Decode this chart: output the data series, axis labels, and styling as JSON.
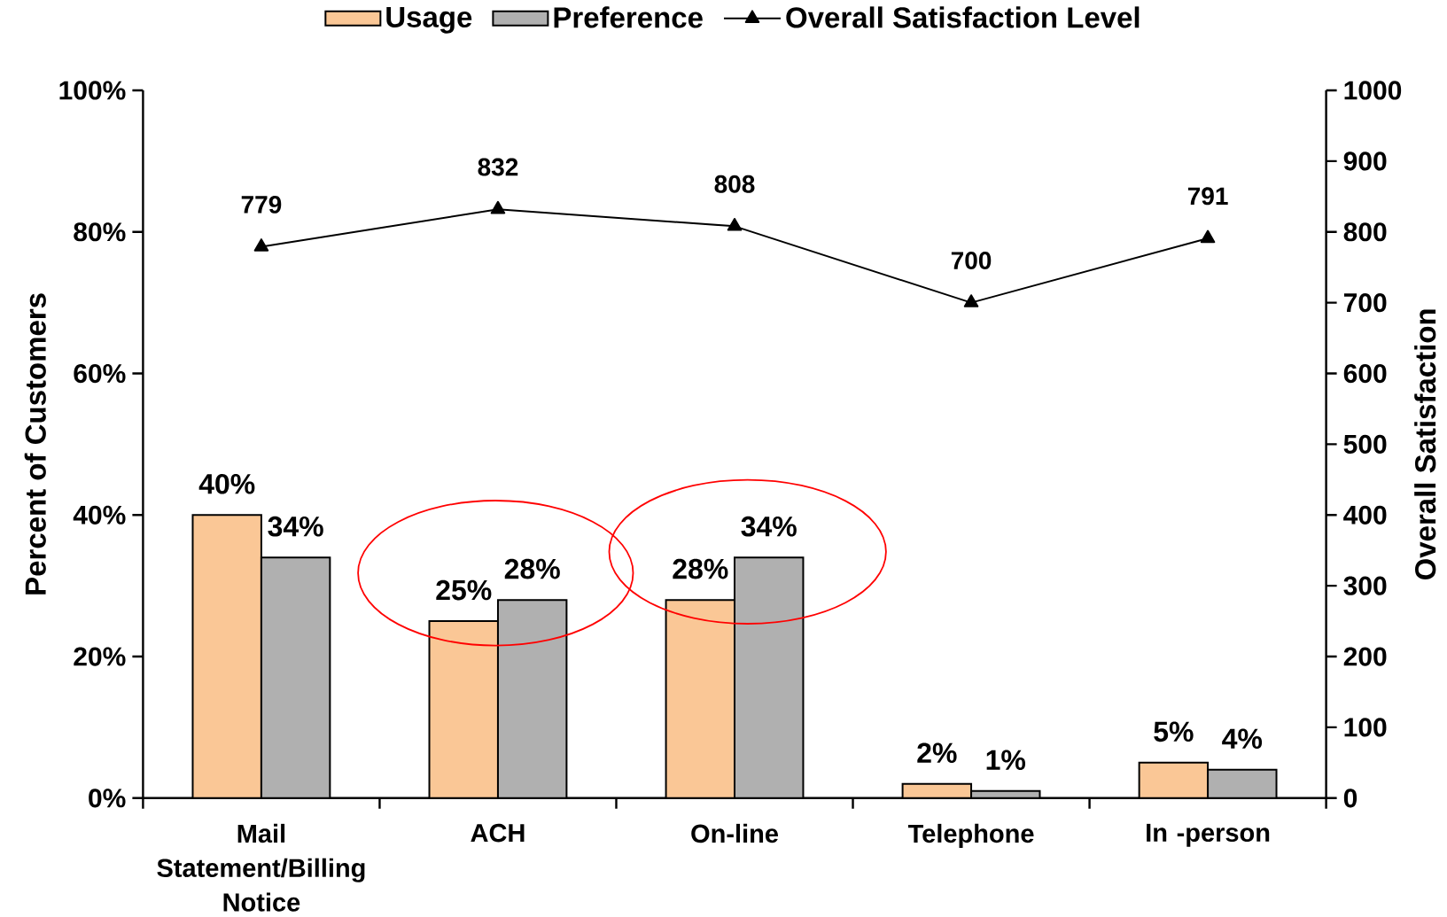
{
  "chart_data": {
    "type": "bar",
    "categories": [
      "Mail Statement/Billing Notice",
      "ACH",
      "On-line",
      "Telephone",
      "In -person"
    ],
    "series": [
      {
        "name": "Usage",
        "color": "#fac796",
        "values": [
          40,
          25,
          28,
          2,
          5
        ],
        "value_labels": [
          "40%",
          "25%",
          "28%",
          "2%",
          "5%"
        ]
      },
      {
        "name": "Preference",
        "color": "#b0b0b0",
        "values": [
          34,
          28,
          34,
          1,
          4
        ],
        "value_labels": [
          "34%",
          "28%",
          "34%",
          "1%",
          "4%"
        ]
      },
      {
        "name": "Overall Satisfaction Level",
        "type": "line",
        "axis": "y2",
        "color": "#000000",
        "marker": "triangle",
        "values": [
          779,
          832,
          808,
          700,
          791
        ],
        "value_labels": [
          "779",
          "832",
          "808",
          "700",
          "791"
        ]
      }
    ],
    "ylabel": "Percent of Customers",
    "y2label": "Overall Satisfaction",
    "ylim": [
      0,
      100
    ],
    "yticks": [
      {
        "value": 0,
        "label": "0%"
      },
      {
        "value": 20,
        "label": "20%"
      },
      {
        "value": 40,
        "label": "40%"
      },
      {
        "value": 60,
        "label": "60%"
      },
      {
        "value": 80,
        "label": "80%"
      },
      {
        "value": 100,
        "label": "100%"
      }
    ],
    "y2lim": [
      0,
      1000
    ],
    "y2ticks": [
      0,
      100,
      200,
      300,
      400,
      500,
      600,
      700,
      800,
      900,
      1000
    ],
    "legend": "top"
  }
}
